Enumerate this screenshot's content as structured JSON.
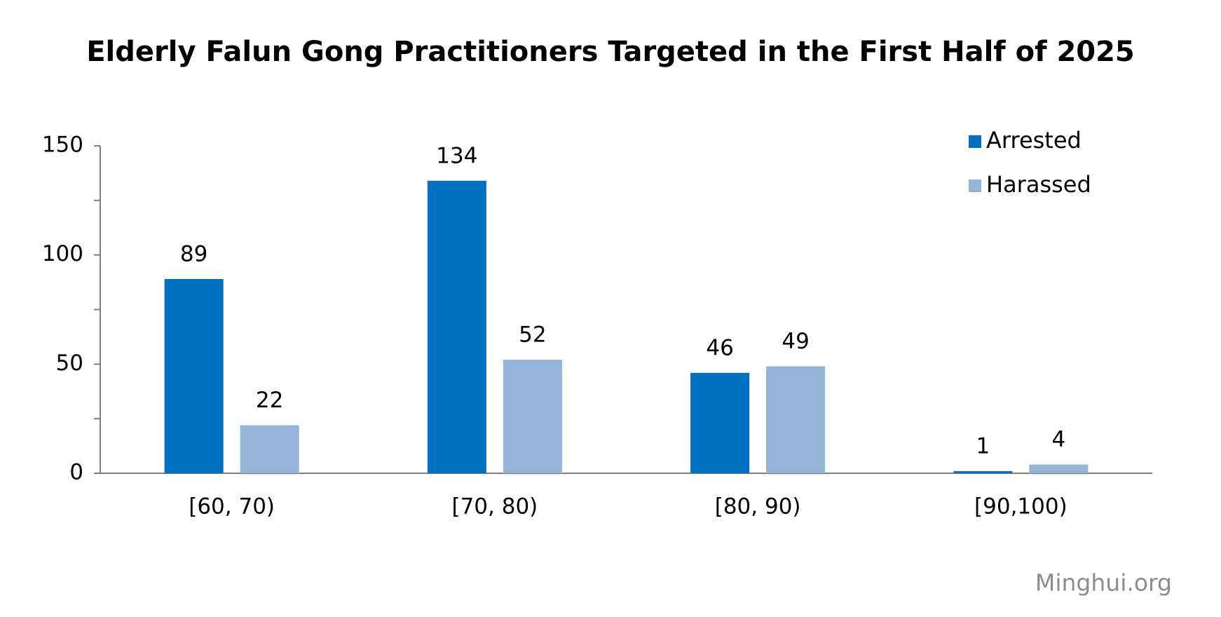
{
  "chart_data": {
    "type": "bar",
    "title": "Elderly Falun Gong Practitioners Targeted in the First Half of 2025",
    "categories": [
      "[60, 70)",
      "[70, 80)",
      "[80, 90)",
      "[90,100)"
    ],
    "series": [
      {
        "name": "Arrested",
        "color": "#0070c0",
        "values": [
          89,
          134,
          46,
          1
        ]
      },
      {
        "name": "Harassed",
        "color": "#95b3d7",
        "values": [
          22,
          52,
          49,
          4
        ]
      }
    ],
    "ylim": [
      0,
      150
    ],
    "yticks": [
      0,
      50,
      100,
      150
    ],
    "yminorticks": [
      25,
      75,
      125
    ],
    "grid": false,
    "legend": "top-right",
    "data_labels": true,
    "source": "Minghui.org"
  }
}
